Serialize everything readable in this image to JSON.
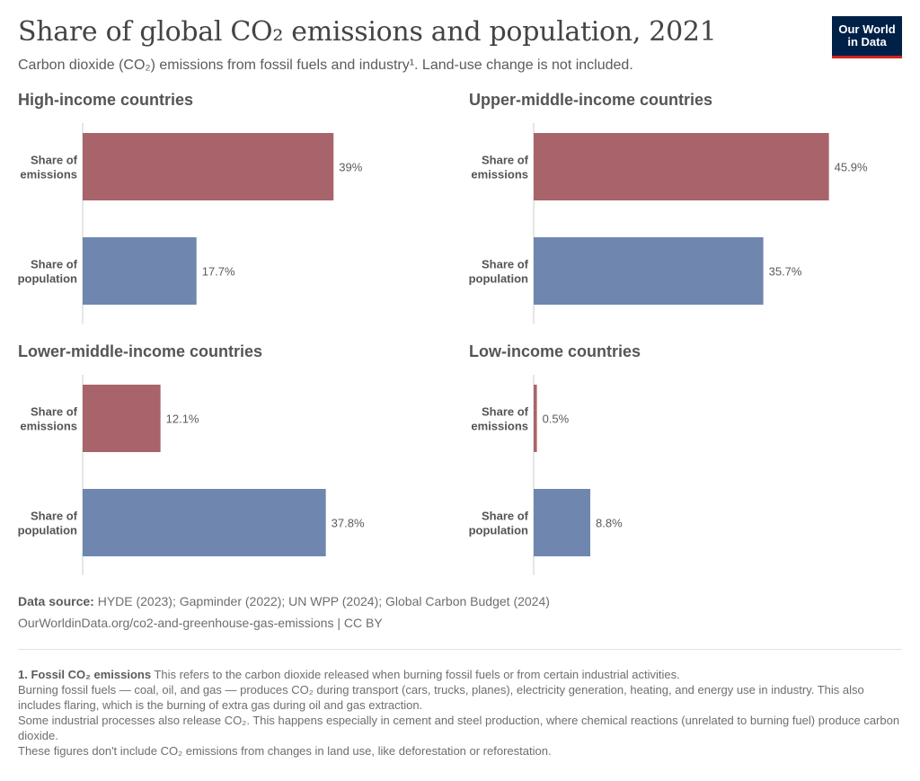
{
  "header": {
    "title": "Share of global CO₂ emissions and population, 2021",
    "subtitle": "Carbon dioxide (CO₂) emissions from fossil fuels and industry¹. Land-use change is not included.",
    "logo_line1": "Our World",
    "logo_line2": "in Data"
  },
  "colors": {
    "emissions": "#a8646a",
    "population": "#6f87af",
    "axis": "#cccccc",
    "logo_bg": "#002147",
    "logo_accent": "#ce261e"
  },
  "chart_data": [
    {
      "type": "bar",
      "orientation": "horizontal",
      "title": "High-income countries",
      "categories": [
        "Share of emissions",
        "Share of population"
      ],
      "values": [
        39,
        17.7
      ],
      "value_labels": [
        "39%",
        "17.7%"
      ],
      "unit": "%",
      "xlim": [
        0,
        50
      ]
    },
    {
      "type": "bar",
      "orientation": "horizontal",
      "title": "Upper-middle-income countries",
      "categories": [
        "Share of emissions",
        "Share of population"
      ],
      "values": [
        45.9,
        35.7
      ],
      "value_labels": [
        "45.9%",
        "35.7%"
      ],
      "unit": "%",
      "xlim": [
        0,
        50
      ]
    },
    {
      "type": "bar",
      "orientation": "horizontal",
      "title": "Lower-middle-income countries",
      "categories": [
        "Share of emissions",
        "Share of population"
      ],
      "values": [
        12.1,
        37.8
      ],
      "value_labels": [
        "12.1%",
        "37.8%"
      ],
      "unit": "%",
      "xlim": [
        0,
        50
      ]
    },
    {
      "type": "bar",
      "orientation": "horizontal",
      "title": "Low-income countries",
      "categories": [
        "Share of emissions",
        "Share of population"
      ],
      "values": [
        0.5,
        8.8
      ],
      "value_labels": [
        "0.5%",
        "8.8%"
      ],
      "unit": "%",
      "xlim": [
        0,
        50
      ]
    }
  ],
  "category_label_lines": [
    [
      "Share of",
      "emissions"
    ],
    [
      "Share of",
      "population"
    ]
  ],
  "footer": {
    "source_label": "Data source:",
    "source_text": " HYDE (2023); Gapminder (2022); UN WPP (2024); Global Carbon Budget (2024)",
    "url": "OurWorldinData.org/co2-and-greenhouse-gas-emissions | CC BY"
  },
  "footnote": {
    "heading": "1. Fossil CO₂ emissions",
    "lead": " This refers to the carbon dioxide released when burning fossil fuels or from certain industrial activities.",
    "para2": "Burning fossil fuels — coal, oil, and gas — produces CO₂ during transport (cars, trucks, planes), electricity generation, heating, and energy use in industry. This also includes flaring, which is the burning of extra gas during oil and gas extraction.",
    "para3": "Some industrial processes also release CO₂. This happens especially in cement and steel production, where chemical reactions (unrelated to burning fuel) produce carbon dioxide.",
    "para4": "These figures don't include CO₂ emissions from changes in land use, like deforestation or reforestation."
  }
}
